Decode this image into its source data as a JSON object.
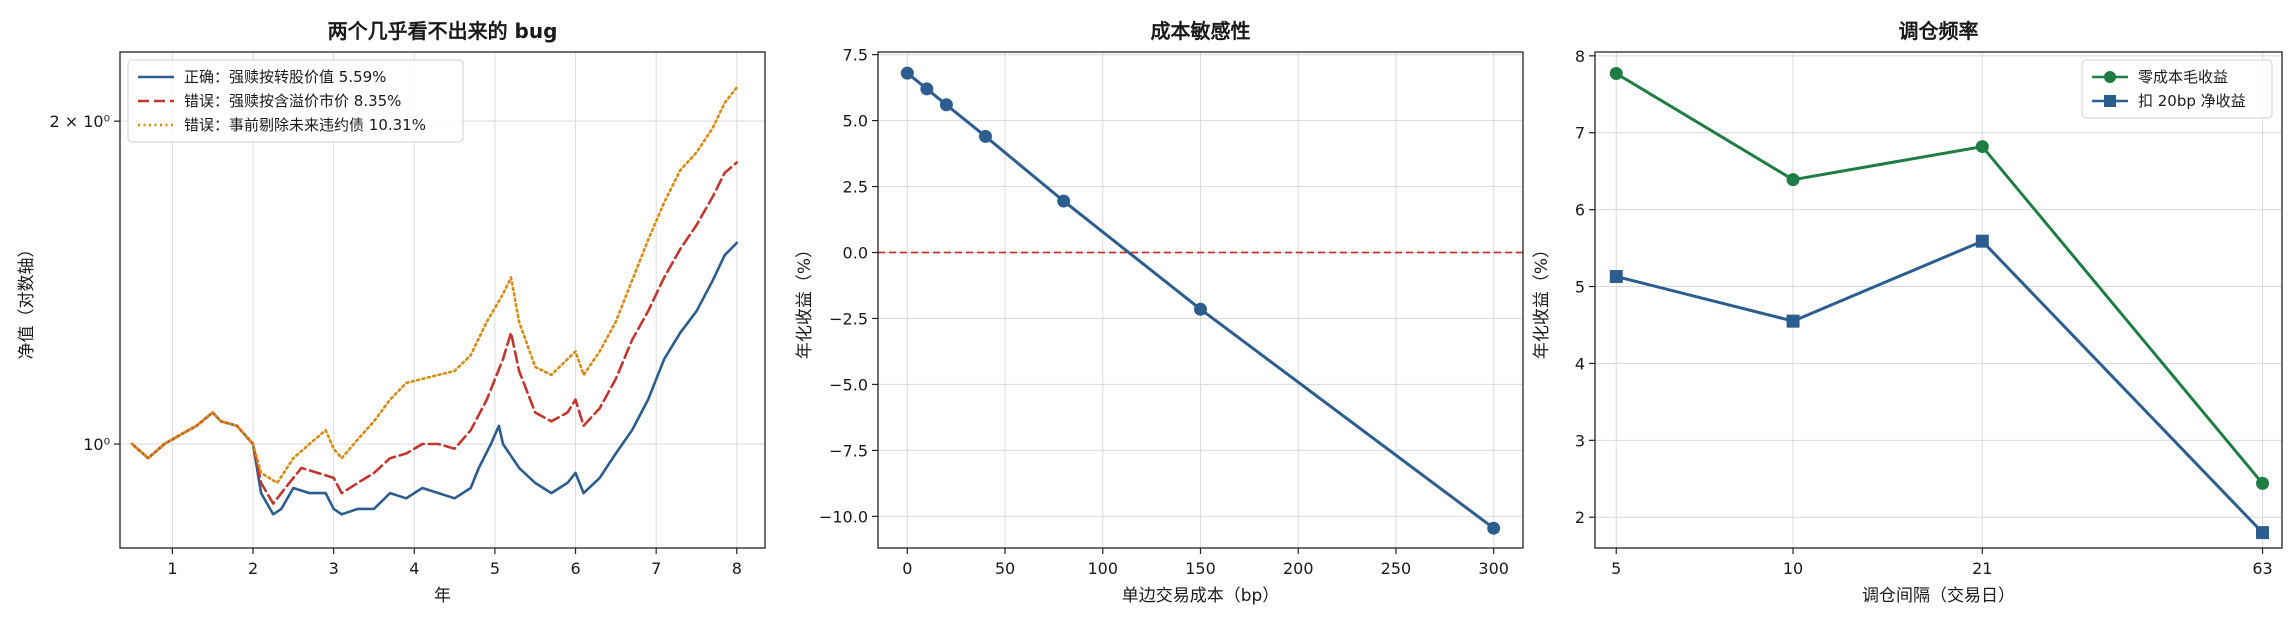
{
  "colors": {
    "blue": "#2c5d8f",
    "red": "#c2362e",
    "orange": "#d98a10",
    "green": "#1e7d45",
    "zero_line": "#c2362e"
  },
  "chart_data": [
    {
      "type": "line",
      "title": "两个几乎看不出来的 bug",
      "xlabel": "年",
      "ylabel": "净值（对数轴）",
      "yscale": "log",
      "xlim": [
        0.35,
        8.35
      ],
      "ylim": [
        0.8,
        2.32
      ],
      "xticks": [
        1,
        2,
        3,
        4,
        5,
        6,
        7,
        8
      ],
      "xtick_labels": [
        "1",
        "2",
        "3",
        "4",
        "5",
        "6",
        "7",
        "8"
      ],
      "yticks": [
        1.0,
        2.0
      ],
      "ytick_labels": [
        "10⁰",
        "2 × 10⁰"
      ],
      "grid": true,
      "legend_position": "upper-left",
      "series": [
        {
          "name": "正确：强赎按转股价值  5.59%",
          "color": "blue",
          "dash": "solid",
          "points": [
            [
              0.5,
              1.0
            ],
            [
              0.7,
              0.97
            ],
            [
              0.9,
              1.0
            ],
            [
              1.1,
              1.02
            ],
            [
              1.3,
              1.04
            ],
            [
              1.5,
              1.07
            ],
            [
              1.6,
              1.05
            ],
            [
              1.8,
              1.04
            ],
            [
              2.0,
              1.0
            ],
            [
              2.1,
              0.9
            ],
            [
              2.25,
              0.86
            ],
            [
              2.35,
              0.87
            ],
            [
              2.5,
              0.91
            ],
            [
              2.7,
              0.9
            ],
            [
              2.9,
              0.9
            ],
            [
              3.0,
              0.87
            ],
            [
              3.1,
              0.86
            ],
            [
              3.3,
              0.87
            ],
            [
              3.5,
              0.87
            ],
            [
              3.7,
              0.9
            ],
            [
              3.9,
              0.89
            ],
            [
              4.1,
              0.91
            ],
            [
              4.3,
              0.9
            ],
            [
              4.5,
              0.89
            ],
            [
              4.7,
              0.91
            ],
            [
              4.8,
              0.95
            ],
            [
              4.95,
              1.0
            ],
            [
              5.05,
              1.04
            ],
            [
              5.1,
              1.0
            ],
            [
              5.3,
              0.95
            ],
            [
              5.5,
              0.92
            ],
            [
              5.7,
              0.9
            ],
            [
              5.9,
              0.92
            ],
            [
              6.0,
              0.94
            ],
            [
              6.1,
              0.9
            ],
            [
              6.3,
              0.93
            ],
            [
              6.5,
              0.98
            ],
            [
              6.7,
              1.03
            ],
            [
              6.9,
              1.1
            ],
            [
              7.1,
              1.2
            ],
            [
              7.3,
              1.27
            ],
            [
              7.5,
              1.33
            ],
            [
              7.7,
              1.42
            ],
            [
              7.85,
              1.5
            ],
            [
              8.0,
              1.54
            ]
          ]
        },
        {
          "name": "错误：强赎按含溢价市价  8.35%",
          "color": "red",
          "dash": "dashed",
          "points": [
            [
              0.5,
              1.0
            ],
            [
              0.7,
              0.97
            ],
            [
              0.9,
              1.0
            ],
            [
              1.1,
              1.02
            ],
            [
              1.3,
              1.04
            ],
            [
              1.5,
              1.07
            ],
            [
              1.6,
              1.05
            ],
            [
              1.8,
              1.04
            ],
            [
              2.0,
              1.0
            ],
            [
              2.1,
              0.92
            ],
            [
              2.25,
              0.88
            ],
            [
              2.4,
              0.91
            ],
            [
              2.6,
              0.95
            ],
            [
              2.8,
              0.94
            ],
            [
              3.0,
              0.93
            ],
            [
              3.1,
              0.9
            ],
            [
              3.3,
              0.92
            ],
            [
              3.5,
              0.94
            ],
            [
              3.7,
              0.97
            ],
            [
              3.9,
              0.98
            ],
            [
              4.1,
              1.0
            ],
            [
              4.3,
              1.0
            ],
            [
              4.5,
              0.99
            ],
            [
              4.7,
              1.03
            ],
            [
              4.9,
              1.1
            ],
            [
              5.1,
              1.2
            ],
            [
              5.2,
              1.27
            ],
            [
              5.3,
              1.17
            ],
            [
              5.5,
              1.07
            ],
            [
              5.7,
              1.05
            ],
            [
              5.9,
              1.07
            ],
            [
              6.0,
              1.1
            ],
            [
              6.1,
              1.04
            ],
            [
              6.3,
              1.08
            ],
            [
              6.5,
              1.15
            ],
            [
              6.7,
              1.25
            ],
            [
              6.9,
              1.33
            ],
            [
              7.1,
              1.43
            ],
            [
              7.3,
              1.52
            ],
            [
              7.5,
              1.6
            ],
            [
              7.7,
              1.7
            ],
            [
              7.85,
              1.79
            ],
            [
              8.0,
              1.83
            ]
          ]
        },
        {
          "name": "错误：事前剔除未来违约债  10.31%",
          "color": "orange",
          "dash": "dotted",
          "points": [
            [
              0.5,
              1.0
            ],
            [
              0.7,
              0.97
            ],
            [
              0.9,
              1.0
            ],
            [
              1.1,
              1.02
            ],
            [
              1.3,
              1.04
            ],
            [
              1.5,
              1.07
            ],
            [
              1.6,
              1.05
            ],
            [
              1.8,
              1.04
            ],
            [
              2.0,
              1.0
            ],
            [
              2.1,
              0.94
            ],
            [
              2.3,
              0.92
            ],
            [
              2.5,
              0.97
            ],
            [
              2.7,
              1.0
            ],
            [
              2.9,
              1.03
            ],
            [
              3.0,
              0.99
            ],
            [
              3.1,
              0.97
            ],
            [
              3.3,
              1.01
            ],
            [
              3.5,
              1.05
            ],
            [
              3.7,
              1.1
            ],
            [
              3.9,
              1.14
            ],
            [
              4.1,
              1.15
            ],
            [
              4.3,
              1.16
            ],
            [
              4.5,
              1.17
            ],
            [
              4.7,
              1.21
            ],
            [
              4.9,
              1.3
            ],
            [
              5.1,
              1.38
            ],
            [
              5.2,
              1.43
            ],
            [
              5.3,
              1.3
            ],
            [
              5.5,
              1.18
            ],
            [
              5.7,
              1.16
            ],
            [
              5.9,
              1.2
            ],
            [
              6.0,
              1.22
            ],
            [
              6.1,
              1.16
            ],
            [
              6.3,
              1.22
            ],
            [
              6.5,
              1.3
            ],
            [
              6.7,
              1.42
            ],
            [
              6.9,
              1.55
            ],
            [
              7.1,
              1.68
            ],
            [
              7.3,
              1.8
            ],
            [
              7.5,
              1.87
            ],
            [
              7.7,
              1.97
            ],
            [
              7.85,
              2.08
            ],
            [
              8.0,
              2.15
            ]
          ]
        }
      ]
    },
    {
      "type": "line",
      "title": "成本敏感性",
      "xlabel": "单边交易成本（bp）",
      "ylabel": "年化收益（%）",
      "xlim": [
        -15,
        315
      ],
      "ylim": [
        -11.2,
        7.6
      ],
      "xticks": [
        0,
        50,
        100,
        150,
        200,
        250,
        300
      ],
      "xtick_labels": [
        "0",
        "50",
        "100",
        "150",
        "200",
        "250",
        "300"
      ],
      "yticks": [
        7.5,
        5.0,
        2.5,
        0.0,
        -2.5,
        -5.0,
        -7.5,
        -10.0
      ],
      "ytick_labels": [
        "7.5",
        "5.0",
        "2.5",
        "0.0",
        "−2.5",
        "−5.0",
        "−7.5",
        "−10.0"
      ],
      "grid": true,
      "reference_line": 0,
      "series": [
        {
          "color": "blue",
          "marker": "circle",
          "x": [
            0,
            10,
            20,
            40,
            80,
            150,
            300
          ],
          "y": [
            6.8,
            6.2,
            5.6,
            4.4,
            1.95,
            -2.15,
            -10.45
          ]
        }
      ]
    },
    {
      "type": "line",
      "title": "调仓频率",
      "xlabel": "调仓间隔（交易日）",
      "ylabel": "年化收益（%）",
      "xscale": "log",
      "xlim": [
        4.6,
        68
      ],
      "ylim": [
        1.6,
        8.05
      ],
      "xticks": [
        5,
        10,
        21,
        63
      ],
      "xtick_labels": [
        "5",
        "10",
        "21",
        "63"
      ],
      "yticks": [
        2,
        3,
        4,
        5,
        6,
        7,
        8
      ],
      "ytick_labels": [
        "2",
        "3",
        "4",
        "5",
        "6",
        "7",
        "8"
      ],
      "grid": true,
      "legend_position": "upper-right",
      "series": [
        {
          "name": "零成本毛收益",
          "color": "green",
          "marker": "circle",
          "x": [
            5,
            10,
            21,
            63
          ],
          "y": [
            7.77,
            6.39,
            6.82,
            2.44
          ]
        },
        {
          "name": "扣 20bp 净收益",
          "color": "blue",
          "marker": "square",
          "x": [
            5,
            10,
            21,
            63
          ],
          "y": [
            5.13,
            4.55,
            5.59,
            1.8
          ]
        }
      ]
    }
  ]
}
